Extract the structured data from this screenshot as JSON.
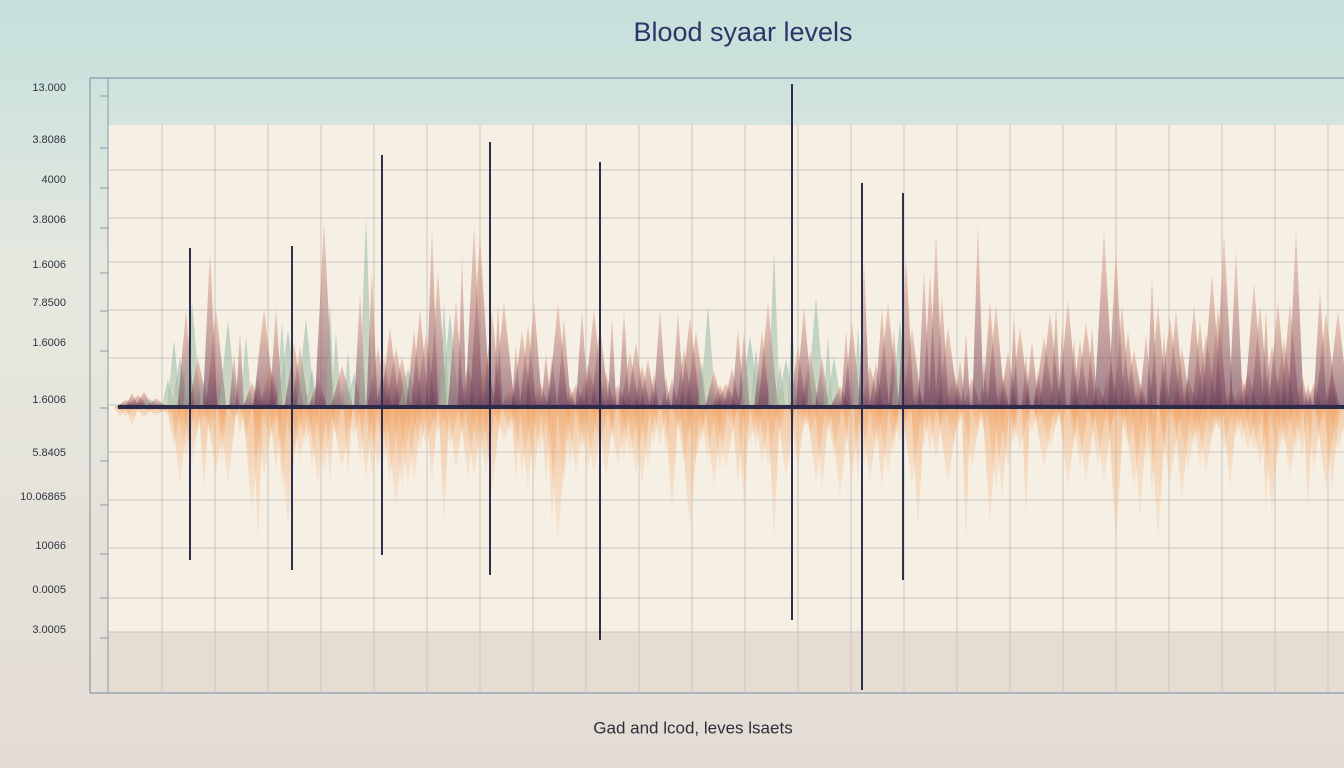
{
  "title": "Blood syaar levels",
  "axis_labels": [
    "13.000",
    "3.8086",
    "4000",
    "3.8006",
    "1.6006",
    "7.8500",
    "1.6006",
    "1.6006",
    "5.8405",
    "10.06865",
    "10066",
    "0.0005",
    "3.0005"
  ],
  "caption": "Gad and lcod, leves lsaets"
}
